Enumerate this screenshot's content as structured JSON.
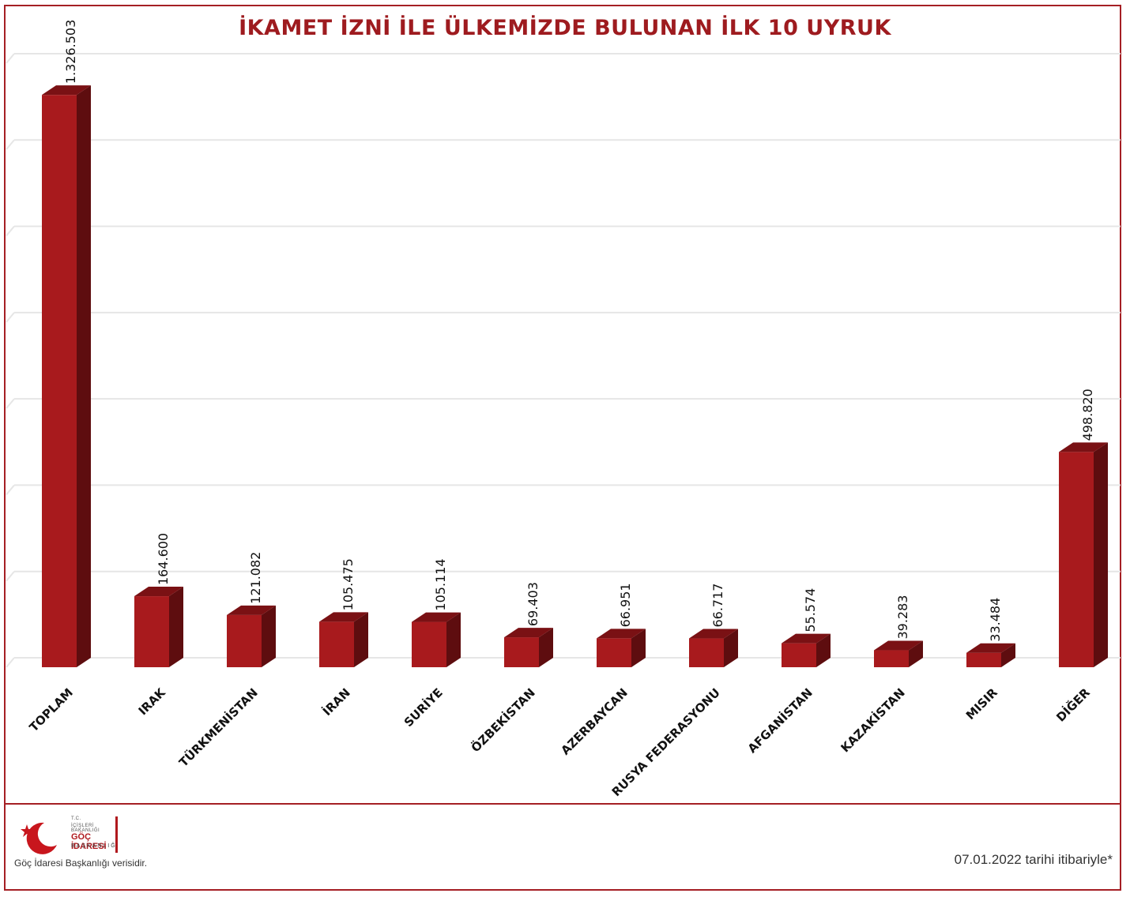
{
  "title": "İKAMET İZNİ İLE ÜLKEMİZDE BULUNAN İLK 10 UYRUK",
  "footer": {
    "source": "Göç İdaresi Başkanlığı verisidir.",
    "date_note": "07.01.2022 tarihi itibariyle*",
    "logo": {
      "line1": "T.C.",
      "line2": "İÇİŞLERİ BAKANLIĞI",
      "main": "GÖÇ İDARESİ",
      "sub": "BAŞKANLIĞI"
    }
  },
  "colors": {
    "bar_front": "#a81a1d",
    "bar_side": "#5e0d0f",
    "bar_top": "#7a1114",
    "title": "#9e1b1f",
    "frame": "#a51f24",
    "grid": "#e6e6e6"
  },
  "chart_data": {
    "type": "bar",
    "title": "İKAMET İZNİ İLE ÜLKEMİZDE BULUNAN İLK 10 UYRUK",
    "categories": [
      "TOPLAM",
      "IRAK",
      "TÜRKMENİSTAN",
      "İRAN",
      "SURİYE",
      "ÖZBEKİSTAN",
      "AZERBAYCAN",
      "RUSYA FEDERASYONU",
      "AFGANİSTAN",
      "KAZAKİSTAN",
      "MISIR",
      "DİĞER"
    ],
    "values": [
      1326503,
      164600,
      121082,
      105475,
      105114,
      69403,
      66951,
      66717,
      55574,
      39283,
      33484,
      498820
    ],
    "value_labels": [
      "1.326.503",
      "164.600",
      "121.082",
      "105.475",
      "105.114",
      "69.403",
      "66.951",
      "66.717",
      "55.574",
      "39.283",
      "33.484",
      "498.820"
    ],
    "xlabel": "",
    "ylabel": "",
    "ylim": [
      0,
      1400000
    ],
    "grid": true,
    "legend": "none",
    "style": "3d"
  }
}
